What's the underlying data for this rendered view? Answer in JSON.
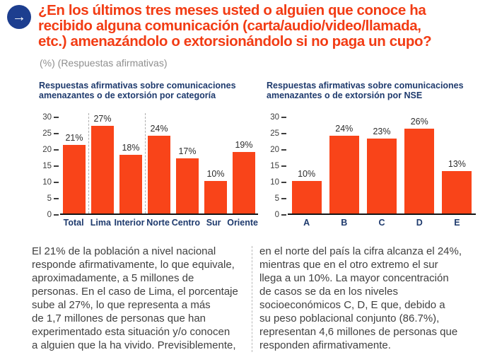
{
  "header": {
    "icon_glyph": "→",
    "title": "¿En los últimos tres meses usted o alguien que conoce ha\nrecibido alguna comunicación (carta/audio/video/llamada,\netc.) amenazándolo o extorsionándolo si no paga un cupo?",
    "subtitle": "(%) (Respuestas afirmativas)"
  },
  "colors": {
    "title_orange": "#F23C14",
    "bar_orange": "#F94419",
    "navy": "#1E3A6D",
    "icon_blue": "#1D3E8F",
    "body_text": "#404040",
    "subtitle_gray": "#8F8F8F"
  },
  "chart_data": [
    {
      "type": "bar",
      "title": "Respuestas afirmativas sobre comunicaciones\namenazantes o de extorsión por categoría",
      "categories": [
        "Total",
        "Lima",
        "Interior",
        "Norte",
        "Centro",
        "Sur",
        "Oriente"
      ],
      "values": [
        21,
        27,
        18,
        24,
        17,
        10,
        19
      ],
      "labels": [
        "21%",
        "27%",
        "18%",
        "24%",
        "17%",
        "10%",
        "19%"
      ],
      "xlabel": "",
      "ylabel": "",
      "ylim": [
        0,
        30
      ],
      "yticks": [
        0,
        5,
        10,
        15,
        20,
        25,
        30
      ],
      "grid": false,
      "legend": false,
      "bar_color": "#F94419",
      "separator_fractions": [
        0.14286,
        0.42857
      ]
    },
    {
      "type": "bar",
      "title": "Respuestas afirmativas sobre comunicaciones\namenazantes o de extorsión por NSE",
      "categories": [
        "A",
        "B",
        "C",
        "D",
        "E"
      ],
      "values": [
        10,
        24,
        23,
        26,
        13
      ],
      "labels": [
        "10%",
        "24%",
        "23%",
        "26%",
        "13%"
      ],
      "xlabel": "",
      "ylabel": "",
      "ylim": [
        0,
        30
      ],
      "yticks": [
        0,
        5,
        10,
        15,
        20,
        25,
        30
      ],
      "grid": false,
      "legend": false,
      "bar_color": "#F94419",
      "separator_fractions": []
    }
  ],
  "body": {
    "left_column": "El 21% de la población a nivel nacional\nresponde afirmativamente, lo que equivale,\naproximadamente, a 5 millones de\npersonas. En el caso de Lima, el porcentaje\nsube al 27%, lo que representa a más\nde 1,7 millones de personas que han\nexperimentado esta situación y/o conocen\na alguien que la ha vivido. Previsiblemente,",
    "right_column": "en el norte del país la cifra alcanza el 24%,\nmientras que en el otro extremo el sur\nllega a un 10%. La mayor concentración\nde casos se da en los niveles\nsocioeconómicos C, D, E que, debido a\nsu peso poblacional conjunto (86.7%),\nrepresentan 4,6 millones de personas que\nresponden afirmativamente."
  }
}
